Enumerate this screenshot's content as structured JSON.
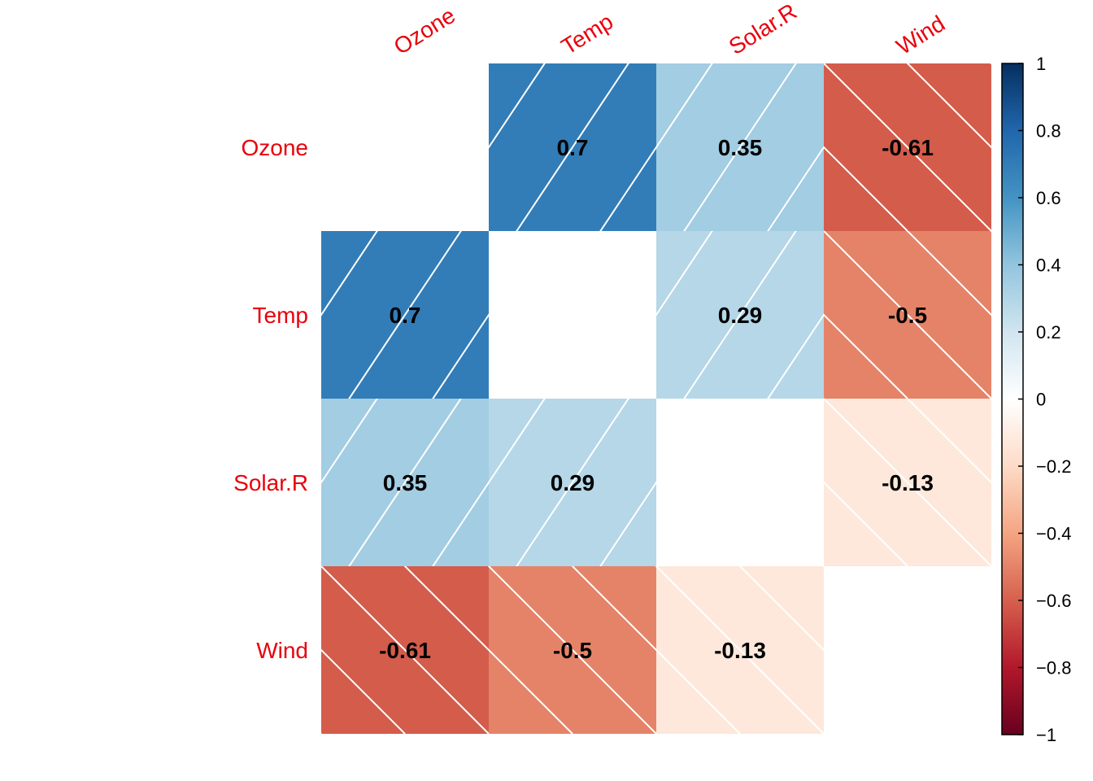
{
  "chart_data": {
    "type": "heatmap",
    "variables": [
      "Ozone",
      "Temp",
      "Solar.R",
      "Wind"
    ],
    "matrix": [
      [
        null,
        0.7,
        0.35,
        -0.61
      ],
      [
        0.7,
        null,
        0.29,
        -0.5
      ],
      [
        0.35,
        0.29,
        null,
        -0.13
      ],
      [
        -0.61,
        -0.5,
        -0.13,
        null
      ]
    ],
    "cell_labels": [
      [
        "",
        "0.7",
        "0.35",
        "-0.61"
      ],
      [
        "0.7",
        "",
        "0.29",
        "-0.5"
      ],
      [
        "0.35",
        "0.29",
        "",
        "-0.13"
      ],
      [
        "-0.61",
        "-0.5",
        "-0.13",
        ""
      ]
    ],
    "colorbar": {
      "ticks": [
        1,
        0.8,
        0.6,
        0.4,
        0.2,
        0,
        -0.2,
        -0.4,
        -0.6,
        -0.8,
        -1
      ],
      "tick_labels": [
        "1",
        "0.8",
        "0.6",
        "0.4",
        "0.2",
        "0",
        "−0.2",
        "−0.4",
        "−0.6",
        "−0.8",
        "−1"
      ],
      "range": [
        -1,
        1
      ]
    },
    "label_color": "#e8000b",
    "colors": {
      "palette": [
        "#67001f",
        "#b2182b",
        "#d6604d",
        "#f4a582",
        "#fddbc7",
        "#ffffff",
        "#d1e5f0",
        "#92c5de",
        "#4393c3",
        "#2166ac",
        "#053061"
      ],
      "hatch": "#ffffff"
    },
    "hatch": "diagonal lines; up-right for positive, down-right for negative",
    "legend_position": "right",
    "title": "",
    "xlabel": "",
    "ylabel": ""
  }
}
